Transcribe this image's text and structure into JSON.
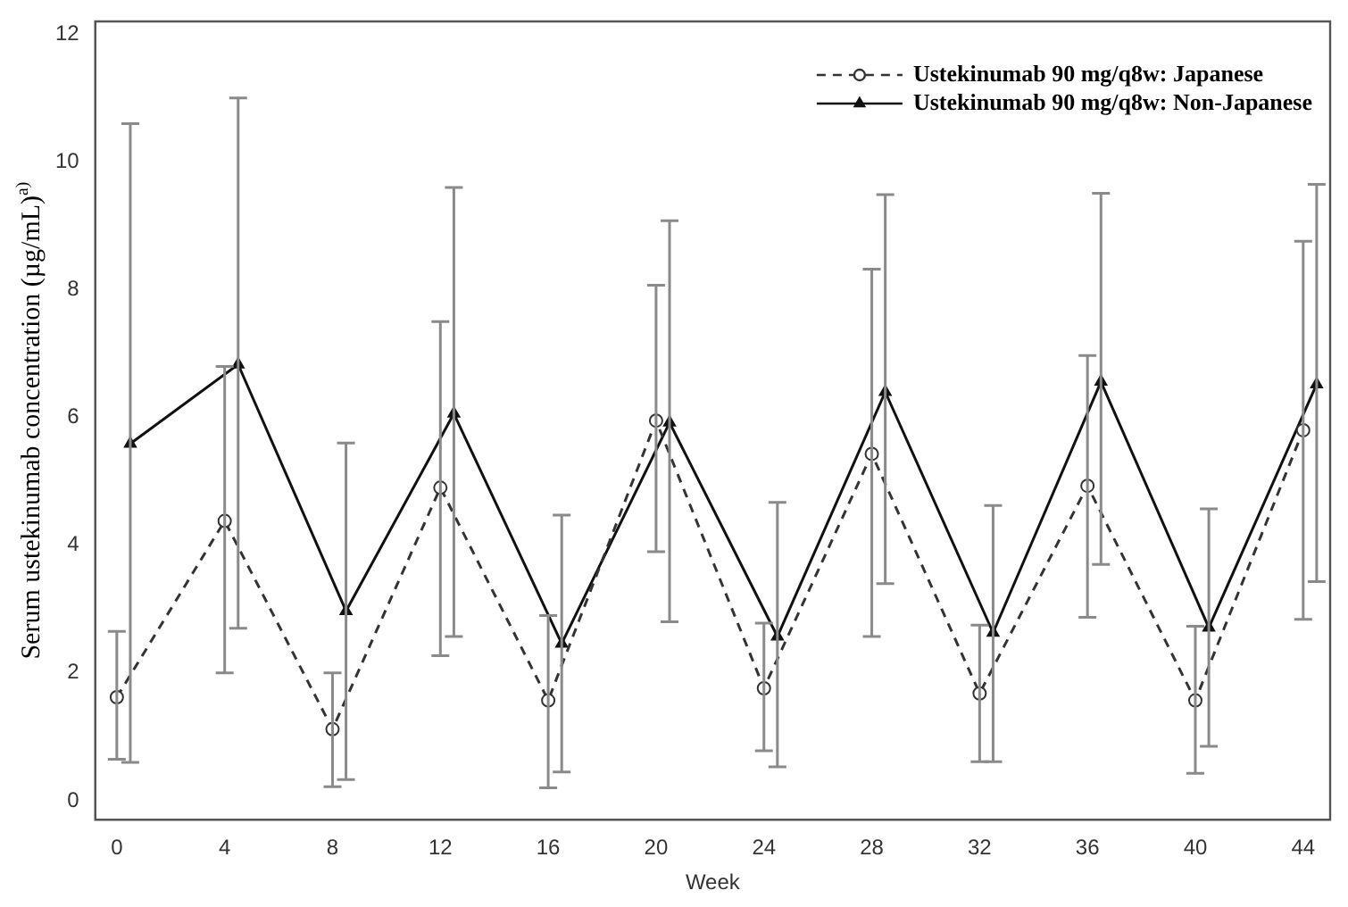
{
  "chart_data": {
    "type": "line",
    "xlabel": "Week",
    "ylabel": "Serum ustekinumab concentration (µg/mL)$^{a)}$",
    "xlim": [
      -0.8,
      45
    ],
    "xticks": [
      0,
      4,
      8,
      12,
      16,
      20,
      24,
      28,
      32,
      36,
      40,
      44
    ],
    "ylim": [
      -0.3,
      12.2
    ],
    "yticks": [
      0,
      2,
      4,
      6,
      8,
      10,
      12
    ],
    "grid": false,
    "legend": "top right",
    "series": [
      {
        "name": "Ustekinumab 90 mg/q8w: Japanese",
        "color": "#333333",
        "marker": "circle",
        "line_style": "dashed",
        "x": [
          0,
          4,
          8,
          12,
          16,
          20,
          24,
          28,
          32,
          36,
          40,
          44
        ],
        "values": [
          1.62,
          4.38,
          1.12,
          4.9,
          1.57,
          5.95,
          1.76,
          5.43,
          1.68,
          4.93,
          1.57,
          5.8
        ],
        "errors": [
          [
            0.65,
            2.65
          ],
          [
            2.0,
            6.8
          ],
          [
            0.22,
            2.0
          ],
          [
            2.27,
            7.5
          ],
          [
            0.2,
            2.9
          ],
          [
            3.9,
            8.07
          ],
          [
            0.78,
            2.78
          ],
          [
            2.57,
            8.32
          ],
          [
            0.61,
            2.75
          ],
          [
            2.87,
            6.97
          ],
          [
            0.43,
            2.73
          ],
          [
            2.84,
            8.76
          ]
        ]
      },
      {
        "name": "Ustekinumab 90 mg/q8w: Non-Japanese",
        "color": "#111111",
        "marker": "triangle",
        "line_style": "solid",
        "x": [
          0.5,
          4.5,
          8.5,
          12.5,
          16.5,
          20.5,
          24.5,
          28.5,
          32.5,
          36.5,
          40.5,
          44.5
        ],
        "values": [
          5.59,
          6.83,
          2.97,
          6.06,
          2.46,
          5.92,
          2.57,
          6.4,
          2.63,
          6.56,
          2.71,
          6.52
        ],
        "errors": [
          [
            0.6,
            10.6
          ],
          [
            2.7,
            11.0
          ],
          [
            0.33,
            5.6
          ],
          [
            2.57,
            9.6
          ],
          [
            0.45,
            4.47
          ],
          [
            2.8,
            9.08
          ],
          [
            0.53,
            4.67
          ],
          [
            3.4,
            9.49
          ],
          [
            0.61,
            4.62
          ],
          [
            3.7,
            9.51
          ],
          [
            0.85,
            4.57
          ],
          [
            3.43,
            9.65
          ]
        ]
      }
    ]
  }
}
